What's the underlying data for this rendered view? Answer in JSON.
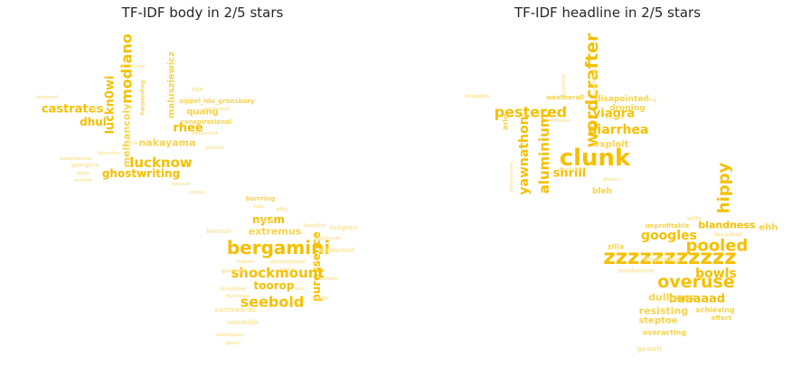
{
  "chart_data": [
    {
      "type": "wordcloud",
      "title": "TF-IDF body in 2/5 stars",
      "shape": "two stars",
      "colors": {
        "strong": "#f5c000",
        "medium": "#f8d34a",
        "light": "#fbe7a3"
      },
      "words": [
        {
          "text": "bergamini",
          "weight": 1.0
        },
        {
          "text": "modiano",
          "weight": 0.78
        },
        {
          "text": "lucknow",
          "weight": 0.72
        },
        {
          "text": "shockmount",
          "weight": 0.72
        },
        {
          "text": "seebold",
          "weight": 0.7
        },
        {
          "text": "luckn0wi",
          "weight": 0.62
        },
        {
          "text": "ghostwriting",
          "weight": 0.62
        },
        {
          "text": "castrates",
          "weight": 0.6
        },
        {
          "text": "nysm",
          "weight": 0.58
        },
        {
          "text": "puressence",
          "weight": 0.58
        },
        {
          "text": "rhee",
          "weight": 0.56
        },
        {
          "text": "toorop",
          "weight": 0.55
        },
        {
          "text": "dhul",
          "weight": 0.55
        },
        {
          "text": "nakayama",
          "weight": 0.52
        },
        {
          "text": "malusziewicz",
          "weight": 0.5
        },
        {
          "text": "quang",
          "weight": 0.5
        },
        {
          "text": "extremus",
          "weight": 0.5
        },
        {
          "text": "melhancoly",
          "weight": 0.48
        },
        {
          "text": "sippel_ido_gronsbury",
          "weight": 0.3
        },
        {
          "text": "conspirational",
          "weight": 0.3
        },
        {
          "text": "harpending",
          "weight": 0.3
        },
        {
          "text": "borrring",
          "weight": 0.3
        },
        {
          "text": "ludgren",
          "weight": 0.28
        },
        {
          "text": "adjourned",
          "weight": 0.28
        },
        {
          "text": "bga",
          "weight": 0.26
        },
        {
          "text": "afty",
          "weight": 0.26
        },
        {
          "text": "bendini",
          "weight": 0.26
        },
        {
          "text": "alestorm",
          "weight": 0.26
        },
        {
          "text": "kernon",
          "weight": 0.26
        },
        {
          "text": "hindsley",
          "weight": 0.26
        },
        {
          "text": "earthwards",
          "weight": 0.26
        },
        {
          "text": "ontokillo",
          "weight": 0.26
        },
        {
          "text": "ukcustomer",
          "weight": 0.26
        },
        {
          "text": "goldwater",
          "weight": 0.22
        },
        {
          "text": "georghiu",
          "weight": 0.22
        },
        {
          "text": "streak",
          "weight": 0.2
        },
        {
          "text": "macht",
          "weight": 0.2
        },
        {
          "text": "loki",
          "weight": 0.2
        },
        {
          "text": "asako",
          "weight": 0.2
        },
        {
          "text": "hostonge",
          "weight": 0.2
        },
        {
          "text": "nachtdylan",
          "weight": 0.2
        },
        {
          "text": "yeddah",
          "weight": 0.18
        },
        {
          "text": "ryrie",
          "weight": 0.18
        },
        {
          "text": "aimsworld",
          "weight": 0.18
        },
        {
          "text": "kaberdasher",
          "weight": 0.18
        },
        {
          "text": "dumont",
          "weight": 0.18
        },
        {
          "text": "goop",
          "weight": 0.18
        },
        {
          "text": "buchte",
          "weight": 0.18
        },
        {
          "text": "hercules",
          "weight": 0.18
        },
        {
          "text": "geobels",
          "weight": 0.18
        },
        {
          "text": "reissued",
          "weight": 0.18
        },
        {
          "text": "coochy",
          "weight": 0.18
        },
        {
          "text": "splitter",
          "weight": 0.18
        },
        {
          "text": "neque",
          "weight": 0.18
        },
        {
          "text": "hbp",
          "weight": 0.18
        },
        {
          "text": "sousa",
          "weight": 0.18
        },
        {
          "text": "ludlam",
          "weight": 0.18
        },
        {
          "text": "quent",
          "weight": 0.18
        }
      ]
    },
    {
      "type": "wordcloud",
      "title": "TF-IDF headline in 2/5 stars",
      "shape": "two stars",
      "colors": {
        "strong": "#f5c000",
        "medium": "#f8d34a",
        "light": "#fbe7a3"
      },
      "words": [
        {
          "text": "clunk",
          "weight": 1.0
        },
        {
          "text": "zzzzzzzzzzz",
          "weight": 0.95
        },
        {
          "text": "pooled",
          "weight": 0.82
        },
        {
          "text": "overuse",
          "weight": 0.82
        },
        {
          "text": "wordcrafter",
          "weight": 0.8
        },
        {
          "text": "aluminium",
          "weight": 0.74
        },
        {
          "text": "pestered",
          "weight": 0.72
        },
        {
          "text": "yawnathon",
          "weight": 0.72
        },
        {
          "text": "googles",
          "weight": 0.72
        },
        {
          "text": "diarrhea",
          "weight": 0.68
        },
        {
          "text": "bowls",
          "weight": 0.68
        },
        {
          "text": "baaaaad",
          "weight": 0.66
        },
        {
          "text": "viagra",
          "weight": 0.64
        },
        {
          "text": "hippy",
          "weight": 0.64
        },
        {
          "text": "shrill",
          "weight": 0.62
        },
        {
          "text": "blandness",
          "weight": 0.55
        },
        {
          "text": "dullness",
          "weight": 0.5
        },
        {
          "text": "resisting",
          "weight": 0.48
        },
        {
          "text": "steptoe",
          "weight": 0.46
        },
        {
          "text": "exploit",
          "weight": 0.42
        },
        {
          "text": "disapointed",
          "weight": 0.42
        },
        {
          "text": "droning",
          "weight": 0.4
        },
        {
          "text": "arid",
          "weight": 0.38
        },
        {
          "text": "bleh",
          "weight": 0.38
        },
        {
          "text": "ehh",
          "weight": 0.38
        },
        {
          "text": "weatherall",
          "weight": 0.34
        },
        {
          "text": "zilla",
          "weight": 0.34
        },
        {
          "text": "achieving",
          "weight": 0.34
        },
        {
          "text": "overacting",
          "weight": 0.34
        },
        {
          "text": "effect",
          "weight": 0.3
        },
        {
          "text": "unprofitable",
          "weight": 0.3
        },
        {
          "text": "dispiriting",
          "weight": 0.28
        },
        {
          "text": "geoah",
          "weight": 0.28
        },
        {
          "text": "maciek",
          "weight": 0.26
        },
        {
          "text": "scratched",
          "weight": 0.26
        },
        {
          "text": "polystyrene",
          "weight": 0.26
        },
        {
          "text": "wilts",
          "weight": 0.24
        },
        {
          "text": "plotholes",
          "weight": 0.22
        },
        {
          "text": "cushions",
          "weight": 0.22
        },
        {
          "text": "vexing",
          "weight": 0.2
        },
        {
          "text": "plonky",
          "weight": 0.2
        },
        {
          "text": "decadent",
          "weight": 0.2
        },
        {
          "text": "sennheisers",
          "weight": 0.2
        },
        {
          "text": "impossible",
          "weight": 0.2
        },
        {
          "text": "lilliputian",
          "weight": 0.2
        }
      ]
    }
  ]
}
